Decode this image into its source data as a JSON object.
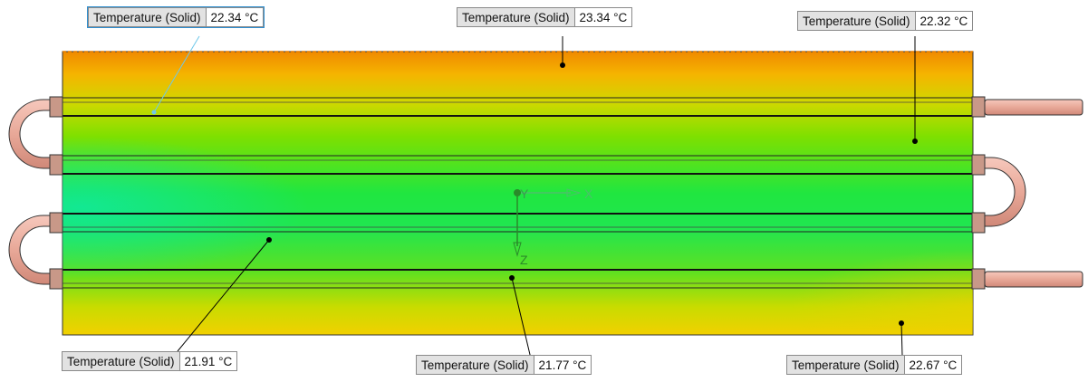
{
  "viewport": {
    "background": "#ffffff"
  },
  "colormap": {
    "hot": "#f08a00",
    "warm": "#f7c600",
    "mid": "#a8e000",
    "cool": "#38e830",
    "cold": "#10e88a",
    "pipe_copper": "#e8a898"
  },
  "triad": {
    "x_label": "X",
    "y_label": "Y",
    "z_label": "Z"
  },
  "probes": [
    {
      "id": "p1",
      "name": "Temperature (Solid)",
      "value": "22.34 °C"
    },
    {
      "id": "p2",
      "name": "Temperature (Solid)",
      "value": "23.34 °C"
    },
    {
      "id": "p3",
      "name": "Temperature (Solid)",
      "value": "22.32 °C"
    },
    {
      "id": "p4",
      "name": "Temperature (Solid)",
      "value": "21.91 °C"
    },
    {
      "id": "p5",
      "name": "Temperature (Solid)",
      "value": "21.77 °C"
    },
    {
      "id": "p6",
      "name": "Temperature (Solid)",
      "value": "22.67 °C"
    }
  ]
}
